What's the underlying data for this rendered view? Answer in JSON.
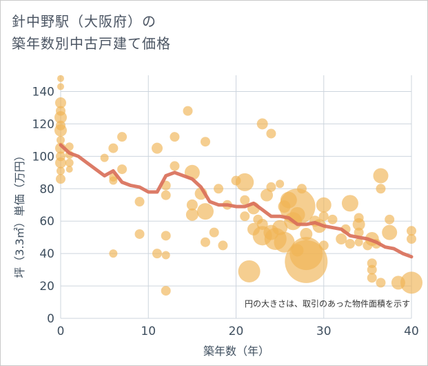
{
  "title_line1": "針中野駅（大阪府）の",
  "title_line2": "築年数別中古戸建て価格",
  "note": "円の大きさは、取引のあった物件面積を示す",
  "colors": {
    "bubble": "#f0b354",
    "line": "#d9705a",
    "grid": "#cdd5de",
    "axis_text": "#3f4f5f"
  },
  "chart_data": {
    "type": "scatter",
    "xlabel": "築年数（年）",
    "ylabel": "坪（3.3㎡）単価（万円）",
    "xlim": [
      0,
      40
    ],
    "ylim": [
      0,
      150
    ],
    "xticks": [
      0,
      10,
      20,
      30,
      40
    ],
    "yticks": [
      0,
      20,
      40,
      60,
      80,
      100,
      120,
      140
    ],
    "grid": true,
    "bubbles": [
      {
        "x": 0,
        "y": 148,
        "s": 5
      },
      {
        "x": 0,
        "y": 143,
        "s": 5
      },
      {
        "x": 0,
        "y": 133,
        "s": 8
      },
      {
        "x": 0,
        "y": 128,
        "s": 7
      },
      {
        "x": 0,
        "y": 124,
        "s": 9
      },
      {
        "x": 0,
        "y": 119,
        "s": 7
      },
      {
        "x": 0,
        "y": 116,
        "s": 9
      },
      {
        "x": 0,
        "y": 110,
        "s": 6
      },
      {
        "x": 0,
        "y": 105,
        "s": 8
      },
      {
        "x": 0,
        "y": 100,
        "s": 7
      },
      {
        "x": 0,
        "y": 96,
        "s": 8
      },
      {
        "x": 0,
        "y": 91,
        "s": 6
      },
      {
        "x": 0,
        "y": 86,
        "s": 7
      },
      {
        "x": 1,
        "y": 106,
        "s": 6
      },
      {
        "x": 1,
        "y": 101,
        "s": 6
      },
      {
        "x": 1,
        "y": 96,
        "s": 6
      },
      {
        "x": 1,
        "y": 92,
        "s": 5
      },
      {
        "x": 5,
        "y": 99,
        "s": 6
      },
      {
        "x": 6,
        "y": 105,
        "s": 7
      },
      {
        "x": 6,
        "y": 87,
        "s": 6
      },
      {
        "x": 6,
        "y": 85,
        "s": 6
      },
      {
        "x": 6,
        "y": 40,
        "s": 6
      },
      {
        "x": 7,
        "y": 112,
        "s": 7
      },
      {
        "x": 7,
        "y": 92,
        "s": 7
      },
      {
        "x": 9,
        "y": 72,
        "s": 7
      },
      {
        "x": 9,
        "y": 52,
        "s": 7
      },
      {
        "x": 11,
        "y": 105,
        "s": 8
      },
      {
        "x": 11,
        "y": 40,
        "s": 7
      },
      {
        "x": 12,
        "y": 82,
        "s": 7
      },
      {
        "x": 12,
        "y": 76,
        "s": 7
      },
      {
        "x": 12,
        "y": 51,
        "s": 7
      },
      {
        "x": 12,
        "y": 39,
        "s": 6
      },
      {
        "x": 12,
        "y": 17,
        "s": 7
      },
      {
        "x": 13,
        "y": 112,
        "s": 7
      },
      {
        "x": 13,
        "y": 94,
        "s": 7
      },
      {
        "x": 14.5,
        "y": 128,
        "s": 7
      },
      {
        "x": 15,
        "y": 90,
        "s": 11
      },
      {
        "x": 15,
        "y": 70,
        "s": 8
      },
      {
        "x": 15,
        "y": 64,
        "s": 9
      },
      {
        "x": 16,
        "y": 77,
        "s": 9
      },
      {
        "x": 16.5,
        "y": 109,
        "s": 7
      },
      {
        "x": 16.5,
        "y": 66,
        "s": 12
      },
      {
        "x": 16.5,
        "y": 47,
        "s": 7
      },
      {
        "x": 17.5,
        "y": 53,
        "s": 7
      },
      {
        "x": 18,
        "y": 80,
        "s": 7
      },
      {
        "x": 18.5,
        "y": 45,
        "s": 7
      },
      {
        "x": 19,
        "y": 70,
        "s": 7
      },
      {
        "x": 20,
        "y": 85,
        "s": 7
      },
      {
        "x": 21,
        "y": 84,
        "s": 13
      },
      {
        "x": 21,
        "y": 73,
        "s": 7
      },
      {
        "x": 21,
        "y": 63,
        "s": 7
      },
      {
        "x": 21.5,
        "y": 29,
        "s": 16
      },
      {
        "x": 22,
        "y": 68,
        "s": 9
      },
      {
        "x": 22,
        "y": 55,
        "s": 9
      },
      {
        "x": 22.5,
        "y": 61,
        "s": 7
      },
      {
        "x": 23,
        "y": 120,
        "s": 8
      },
      {
        "x": 23,
        "y": 58,
        "s": 8
      },
      {
        "x": 23,
        "y": 51,
        "s": 14
      },
      {
        "x": 23.5,
        "y": 76,
        "s": 9
      },
      {
        "x": 24,
        "y": 114,
        "s": 7
      },
      {
        "x": 24,
        "y": 81,
        "s": 7
      },
      {
        "x": 24,
        "y": 53,
        "s": 11
      },
      {
        "x": 24.5,
        "y": 49,
        "s": 16
      },
      {
        "x": 25,
        "y": 83,
        "s": 6
      },
      {
        "x": 25,
        "y": 56,
        "s": 11
      },
      {
        "x": 25.5,
        "y": 47,
        "s": 15
      },
      {
        "x": 25.5,
        "y": 69,
        "s": 9
      },
      {
        "x": 26,
        "y": 73,
        "s": 12
      },
      {
        "x": 26.5,
        "y": 60,
        "s": 13
      },
      {
        "x": 27,
        "y": 69,
        "s": 26
      },
      {
        "x": 27,
        "y": 64,
        "s": 11
      },
      {
        "x": 27,
        "y": 42,
        "s": 9
      },
      {
        "x": 27.5,
        "y": 80,
        "s": 7
      },
      {
        "x": 28,
        "y": 40,
        "s": 24
      },
      {
        "x": 28,
        "y": 35,
        "s": 31
      },
      {
        "x": 28,
        "y": 52,
        "s": 9
      },
      {
        "x": 29,
        "y": 60,
        "s": 8
      },
      {
        "x": 29.5,
        "y": 57,
        "s": 10
      },
      {
        "x": 30,
        "y": 70,
        "s": 11
      },
      {
        "x": 30,
        "y": 63,
        "s": 7
      },
      {
        "x": 30,
        "y": 45,
        "s": 7
      },
      {
        "x": 31,
        "y": 61,
        "s": 7
      },
      {
        "x": 32,
        "y": 49,
        "s": 8
      },
      {
        "x": 32.5,
        "y": 55,
        "s": 7
      },
      {
        "x": 33,
        "y": 71,
        "s": 12
      },
      {
        "x": 33,
        "y": 46,
        "s": 7
      },
      {
        "x": 34,
        "y": 62,
        "s": 7
      },
      {
        "x": 34,
        "y": 58,
        "s": 9
      },
      {
        "x": 34,
        "y": 53,
        "s": 7
      },
      {
        "x": 34,
        "y": 47,
        "s": 6
      },
      {
        "x": 35,
        "y": 45,
        "s": 7
      },
      {
        "x": 35.5,
        "y": 49,
        "s": 10
      },
      {
        "x": 35.5,
        "y": 34,
        "s": 7
      },
      {
        "x": 35.5,
        "y": 30,
        "s": 7
      },
      {
        "x": 35.5,
        "y": 25,
        "s": 7
      },
      {
        "x": 36,
        "y": 46,
        "s": 7
      },
      {
        "x": 36.5,
        "y": 88,
        "s": 11
      },
      {
        "x": 36.5,
        "y": 80,
        "s": 7
      },
      {
        "x": 36.5,
        "y": 22,
        "s": 7
      },
      {
        "x": 37.5,
        "y": 61,
        "s": 7
      },
      {
        "x": 37.5,
        "y": 53,
        "s": 11
      },
      {
        "x": 38.5,
        "y": 22,
        "s": 10
      },
      {
        "x": 40,
        "y": 54,
        "s": 7
      },
      {
        "x": 40,
        "y": 49,
        "s": 7
      },
      {
        "x": 40,
        "y": 22,
        "s": 16
      }
    ],
    "trend": {
      "x": [
        0,
        1,
        2,
        3,
        4,
        5,
        6,
        7,
        8,
        9,
        10,
        11,
        12,
        13,
        14,
        15,
        16,
        17,
        18,
        19,
        20,
        21,
        22,
        23,
        24,
        25,
        26,
        27,
        28,
        29,
        30,
        31,
        32,
        33,
        34,
        35,
        36,
        37,
        38,
        39,
        40
      ],
      "y": [
        107,
        102,
        100,
        96,
        92,
        88,
        91,
        84,
        82,
        81,
        78,
        78,
        88,
        90,
        88,
        86,
        81,
        72,
        70,
        70,
        69,
        69,
        71,
        67,
        63,
        63,
        62,
        58,
        58,
        59,
        57,
        56,
        55,
        51,
        50,
        49,
        47,
        44,
        43,
        40,
        38
      ]
    }
  }
}
